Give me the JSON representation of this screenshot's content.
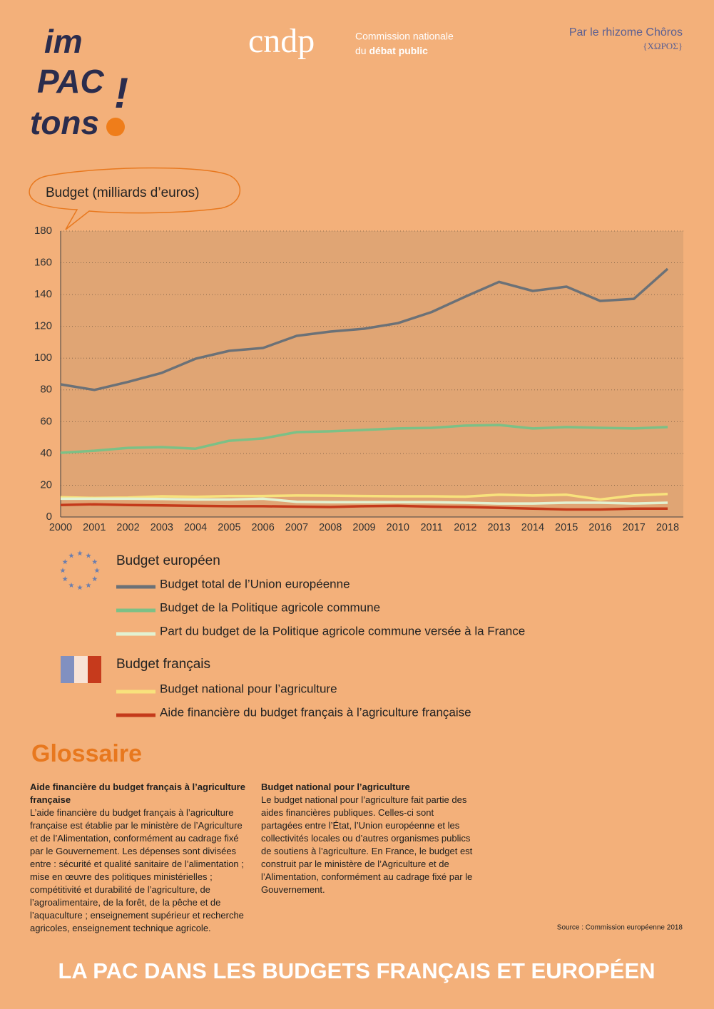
{
  "header": {
    "logo": {
      "lines": [
        "im",
        "PAC",
        "tons"
      ],
      "mark": "!"
    },
    "cndp": {
      "acronym": "cndp",
      "line1": "Commission nationale",
      "line2_a": "du",
      "line2_b": "débat public"
    },
    "credit": "Par le rhizome Chôros",
    "credit_greek": "{ΧΩΡΟΣ}"
  },
  "chart_data": {
    "type": "line",
    "y_label": "Budget",
    "y_unit": "(milliards d’euros)",
    "categories": [
      "2000",
      "2001",
      "2002",
      "2003",
      "2004",
      "2005",
      "2006",
      "2007",
      "2008",
      "2009",
      "2010",
      "2011",
      "2012",
      "2013",
      "2014",
      "2015",
      "2016",
      "2017",
      "2018"
    ],
    "ylim": [
      0,
      180
    ],
    "yticks": [
      0,
      20,
      40,
      60,
      80,
      100,
      120,
      140,
      160,
      180
    ],
    "grid": true,
    "legend_groups": [
      "Budget européen",
      "Budget français"
    ],
    "series": [
      {
        "name": "Budget total de l’Union européenne",
        "color": "#6b7177",
        "values": [
          83.5,
          80,
          85,
          90.7,
          99.6,
          104.6,
          106.4,
          114,
          116.7,
          118.5,
          122,
          129,
          138.7,
          148,
          142.3,
          145,
          136,
          137.3,
          156.2
        ]
      },
      {
        "name": "Budget de la Politique agricole commune",
        "color": "#7cc086",
        "values": [
          40.4,
          41.7,
          43.5,
          44,
          43,
          48,
          49.4,
          53.4,
          53.9,
          54.8,
          55.7,
          56.1,
          57.5,
          57.9,
          55.7,
          56.6,
          56.1,
          55.7,
          56.6
        ]
      },
      {
        "name": "Part du budget de la Politique agricole commune versée à la France",
        "color": "#e2f2d2",
        "values": [
          11.5,
          11.5,
          11.5,
          11.3,
          11,
          11,
          11.5,
          9.5,
          9.3,
          9.3,
          9.3,
          9.3,
          9,
          8.5,
          8.5,
          9,
          9,
          8.5,
          9
        ]
      },
      {
        "name": "Budget national pour l’agriculture",
        "color": "#f8e27c",
        "values": [
          12.5,
          12,
          12.2,
          13,
          12.7,
          13.2,
          13.2,
          13.5,
          13.4,
          13.2,
          13,
          13,
          12.8,
          14,
          13.5,
          14,
          11,
          13.5,
          14.5
        ]
      },
      {
        "name": "Aide financière du budget français à l’agriculture française",
        "color": "#c43a1b",
        "values": [
          7.5,
          8,
          7.5,
          7.3,
          7,
          6.8,
          6.8,
          6.5,
          6.3,
          6.8,
          7,
          6.5,
          6.3,
          5.8,
          5.3,
          4.7,
          4.7,
          5.3,
          5.3
        ]
      }
    ]
  },
  "glossary": {
    "title": "Glossaire",
    "entries": [
      {
        "term": "Aide financière du budget français à l’agriculture française",
        "text": "L’aide financière du budget français à l’agriculture française est établie par le ministère de l’Agriculture et de l’Alimentation, conformément au cadrage fixé par le Gouvernement. Les dépenses sont divisées entre : sécurité et qualité sanitaire de l’alimentation ; mise en œuvre des politiques ministérielles ; compétitivité et durabilité de l’agriculture, de l’agroalimentaire, de la forêt, de la pêche et de l’aquaculture ; enseignement supérieur et recherche agricoles, enseignement technique agricole."
      },
      {
        "term": "Budget national pour l’agriculture",
        "text": "Le budget national pour l’agriculture fait partie des aides financières publiques. Celles-ci sont partagées entre l’État, l’Union européenne et les collectivités locales ou d’autres organismes publics de soutiens à l’agriculture. En France, le budget est construit par le ministère de l’Agriculture et de l’Alimentation, conformément au cadrage fixé par le Gouvernement."
      }
    ]
  },
  "source": "Source : Commission européenne 2018",
  "footer": "LA PAC DANS LES BUDGETS FRANÇAIS ET EUROPÉEN"
}
